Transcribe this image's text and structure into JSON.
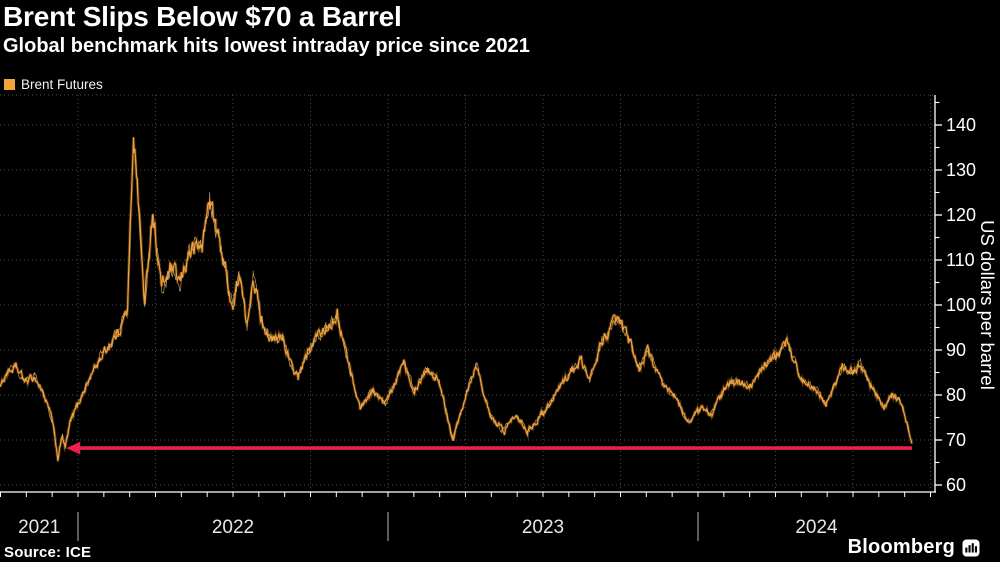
{
  "header": {
    "title": "Brent Slips Below $70 a Barrel",
    "subtitle": "Global benchmark hits lowest intraday price since 2021"
  },
  "legend": {
    "label": "Brent Futures",
    "swatch_color": "#F2A33C"
  },
  "footer": {
    "source": "Source: ICE",
    "brand": "Bloomberg"
  },
  "chart_data": {
    "type": "line",
    "title": "Brent Slips Below $70 a Barrel",
    "subtitle": "Global benchmark hits lowest intraday price since 2021",
    "ylabel": "US dollars per barrel",
    "ylim": [
      57,
      146
    ],
    "yticks": [
      60,
      70,
      80,
      90,
      100,
      110,
      120,
      130,
      140
    ],
    "y_minor_step": 5,
    "x_years": [
      "2021",
      "2022",
      "2023",
      "2024"
    ],
    "x_range_decimal_years": [
      2021.75,
      2024.69
    ],
    "grid": "dotted",
    "legend_position": "top-left",
    "colors": {
      "background": "#000000",
      "line": "#F2A13C",
      "line_halo": "#8A5A1E",
      "line_highlight": "#FFC975",
      "grid": "#4D4D4D",
      "axis": "#FFFFFF",
      "year_separator": "#9A9A9A",
      "annotation_red": "#E8214D"
    },
    "series": [
      {
        "name": "Brent Futures",
        "color": "#F2A13C",
        "points": [
          [
            2021.75,
            82
          ],
          [
            2021.77,
            85
          ],
          [
            2021.8,
            86
          ],
          [
            2021.83,
            83
          ],
          [
            2021.86,
            84
          ],
          [
            2021.89,
            80
          ],
          [
            2021.915,
            75
          ],
          [
            2021.935,
            66
          ],
          [
            2021.95,
            71
          ],
          [
            2021.958,
            68
          ],
          [
            2021.975,
            74
          ],
          [
            2022.0,
            78
          ],
          [
            2022.04,
            84
          ],
          [
            2022.07,
            88
          ],
          [
            2022.1,
            91
          ],
          [
            2022.13,
            94
          ],
          [
            2022.16,
            99
          ],
          [
            2022.179,
            139
          ],
          [
            2022.195,
            123
          ],
          [
            2022.215,
            100
          ],
          [
            2022.24,
            121
          ],
          [
            2022.27,
            104
          ],
          [
            2022.3,
            108
          ],
          [
            2022.33,
            105
          ],
          [
            2022.36,
            112
          ],
          [
            2022.4,
            113
          ],
          [
            2022.425,
            124
          ],
          [
            2022.445,
            117
          ],
          [
            2022.47,
            110
          ],
          [
            2022.5,
            99
          ],
          [
            2022.52,
            107
          ],
          [
            2022.545,
            95
          ],
          [
            2022.565,
            107
          ],
          [
            2022.59,
            97
          ],
          [
            2022.625,
            92
          ],
          [
            2022.66,
            93
          ],
          [
            2022.69,
            86
          ],
          [
            2022.71,
            84
          ],
          [
            2022.74,
            89
          ],
          [
            2022.77,
            93
          ],
          [
            2022.8,
            95
          ],
          [
            2022.835,
            98
          ],
          [
            2022.87,
            88
          ],
          [
            2022.91,
            77
          ],
          [
            2022.95,
            81
          ],
          [
            2022.99,
            78
          ],
          [
            2023.02,
            82
          ],
          [
            2023.05,
            88
          ],
          [
            2023.085,
            81
          ],
          [
            2023.125,
            86
          ],
          [
            2023.165,
            83
          ],
          [
            2023.21,
            70
          ],
          [
            2023.25,
            80
          ],
          [
            2023.285,
            87
          ],
          [
            2023.33,
            75
          ],
          [
            2023.375,
            72
          ],
          [
            2023.415,
            76
          ],
          [
            2023.45,
            72
          ],
          [
            2023.5,
            76
          ],
          [
            2023.575,
            84
          ],
          [
            2023.625,
            88
          ],
          [
            2023.65,
            83
          ],
          [
            2023.69,
            92
          ],
          [
            2023.74,
            97
          ],
          [
            2023.785,
            91
          ],
          [
            2023.81,
            86
          ],
          [
            2023.84,
            90
          ],
          [
            2023.885,
            82
          ],
          [
            2023.925,
            80
          ],
          [
            2023.965,
            74
          ],
          [
            2024.01,
            77
          ],
          [
            2024.045,
            76
          ],
          [
            2024.09,
            82
          ],
          [
            2024.135,
            83
          ],
          [
            2024.175,
            82
          ],
          [
            2024.215,
            87
          ],
          [
            2024.26,
            89
          ],
          [
            2024.29,
            92
          ],
          [
            2024.335,
            83
          ],
          [
            2024.375,
            82
          ],
          [
            2024.415,
            78
          ],
          [
            2024.465,
            86
          ],
          [
            2024.5,
            85
          ],
          [
            2024.525,
            87
          ],
          [
            2024.565,
            81
          ],
          [
            2024.6,
            77
          ],
          [
            2024.625,
            80
          ],
          [
            2024.65,
            79
          ],
          [
            2024.672,
            74
          ],
          [
            2024.69,
            69.2
          ]
        ]
      }
    ],
    "annotation": {
      "type": "horizontal-arrow-left",
      "value": 68.2,
      "from_decimal_year": 2021.962,
      "to_decimal_year": 2024.69,
      "color": "#E8214D"
    },
    "source": "Source: ICE",
    "brand": "Bloomberg"
  }
}
